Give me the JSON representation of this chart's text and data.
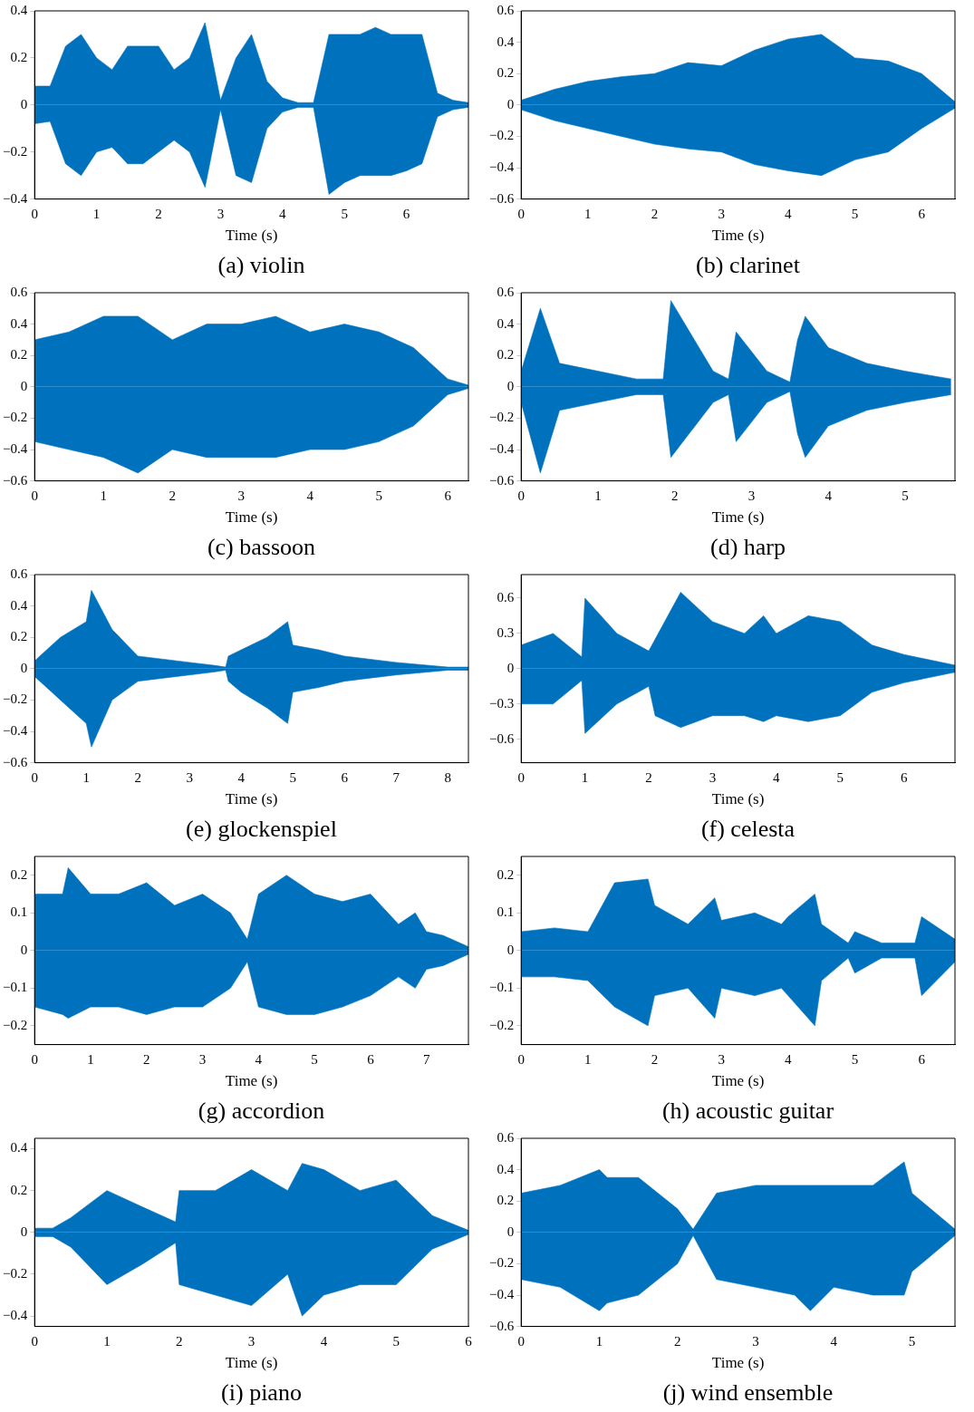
{
  "chart_data": [
    {
      "type": "area",
      "title": "(a) violin",
      "xlabel": "Time (s)",
      "xlim": [
        0,
        7
      ],
      "xticks": [
        0,
        1,
        2,
        3,
        4,
        5,
        6
      ],
      "ylim": [
        -0.4,
        0.4
      ],
      "yticks": [
        -0.4,
        -0.2,
        0,
        0.2,
        0.4
      ],
      "x": [
        0,
        0.25,
        0.5,
        0.75,
        1,
        1.25,
        1.5,
        1.75,
        2,
        2.25,
        2.5,
        2.75,
        3,
        3.25,
        3.5,
        3.75,
        4,
        4.25,
        4.5,
        4.75,
        5,
        5.25,
        5.5,
        5.75,
        6,
        6.25,
        6.5,
        6.75,
        7
      ],
      "series": [
        {
          "color": "#0072bd",
          "values": [
            0.08,
            0.08,
            0.25,
            0.3,
            0.2,
            0.15,
            0.25,
            0.25,
            0.25,
            0.15,
            0.2,
            0.35,
            0.02,
            0.2,
            0.3,
            0.1,
            0.03,
            0.01,
            0.01,
            0.3,
            0.3,
            0.3,
            0.33,
            0.3,
            0.3,
            0.3,
            0.05,
            0.02,
            0.01
          ]
        },
        {
          "color": "#0072bd",
          "values": [
            -0.08,
            -0.07,
            -0.25,
            -0.3,
            -0.2,
            -0.18,
            -0.25,
            -0.25,
            -0.2,
            -0.15,
            -0.2,
            -0.35,
            -0.02,
            -0.3,
            -0.33,
            -0.1,
            -0.03,
            -0.01,
            -0.01,
            -0.38,
            -0.33,
            -0.3,
            -0.3,
            -0.3,
            -0.28,
            -0.25,
            -0.05,
            -0.02,
            -0.01
          ]
        }
      ]
    },
    {
      "type": "area",
      "title": "(b) clarinet",
      "xlabel": "Time (s)",
      "xlim": [
        0,
        6.5
      ],
      "xticks": [
        0,
        1,
        2,
        3,
        4,
        5,
        6
      ],
      "ylim": [
        -0.6,
        0.6
      ],
      "yticks": [
        -0.6,
        -0.4,
        -0.2,
        0,
        0.2,
        0.4,
        0.6
      ],
      "x": [
        0,
        0.5,
        1,
        1.5,
        2,
        2.5,
        3,
        3.5,
        4,
        4.5,
        5,
        5.5,
        6,
        6.5
      ],
      "series": [
        {
          "color": "#0072bd",
          "values": [
            0.03,
            0.1,
            0.15,
            0.18,
            0.2,
            0.27,
            0.25,
            0.35,
            0.42,
            0.45,
            0.3,
            0.28,
            0.2,
            0.02
          ]
        },
        {
          "color": "#0072bd",
          "values": [
            -0.03,
            -0.1,
            -0.15,
            -0.2,
            -0.25,
            -0.28,
            -0.3,
            -0.38,
            -0.42,
            -0.45,
            -0.35,
            -0.3,
            -0.15,
            -0.02
          ]
        }
      ]
    },
    {
      "type": "area",
      "title": "(c) bassoon",
      "xlabel": "Time (s)",
      "xlim": [
        0,
        6.3
      ],
      "xticks": [
        0,
        1,
        2,
        3,
        4,
        5,
        6
      ],
      "ylim": [
        -0.6,
        0.6
      ],
      "yticks": [
        -0.6,
        -0.4,
        -0.2,
        0,
        0.2,
        0.4,
        0.6
      ],
      "x": [
        0,
        0.5,
        1,
        1.5,
        2,
        2.5,
        3,
        3.5,
        4,
        4.5,
        5,
        5.5,
        6,
        6.3
      ],
      "series": [
        {
          "color": "#0072bd",
          "values": [
            0.3,
            0.35,
            0.45,
            0.45,
            0.3,
            0.4,
            0.4,
            0.45,
            0.35,
            0.4,
            0.35,
            0.25,
            0.05,
            0.01
          ]
        },
        {
          "color": "#0072bd",
          "values": [
            -0.35,
            -0.4,
            -0.45,
            -0.55,
            -0.4,
            -0.45,
            -0.45,
            -0.45,
            -0.4,
            -0.4,
            -0.35,
            -0.25,
            -0.05,
            -0.01
          ]
        }
      ]
    },
    {
      "type": "area",
      "title": "(d) harp",
      "xlabel": "Time (s)",
      "xlim": [
        0,
        5.65
      ],
      "xticks": [
        0,
        1,
        2,
        3,
        4,
        5
      ],
      "ylim": [
        -0.6,
        0.6
      ],
      "yticks": [
        -0.6,
        -0.4,
        -0.2,
        0,
        0.2,
        0.4,
        0.6
      ],
      "x": [
        0,
        0.25,
        0.5,
        1,
        1.5,
        1.85,
        1.95,
        2.5,
        2.7,
        2.8,
        3.2,
        3.5,
        3.6,
        3.7,
        4,
        4.5,
        5,
        5.6
      ],
      "series": [
        {
          "color": "#0072bd",
          "values": [
            0.1,
            0.5,
            0.15,
            0.1,
            0.05,
            0.05,
            0.55,
            0.1,
            0.05,
            0.35,
            0.1,
            0.03,
            0.3,
            0.45,
            0.25,
            0.15,
            0.1,
            0.05
          ]
        },
        {
          "color": "#0072bd",
          "values": [
            -0.1,
            -0.55,
            -0.15,
            -0.1,
            -0.05,
            -0.05,
            -0.45,
            -0.1,
            -0.05,
            -0.35,
            -0.1,
            -0.03,
            -0.3,
            -0.45,
            -0.25,
            -0.15,
            -0.1,
            -0.05
          ]
        }
      ]
    },
    {
      "type": "area",
      "title": "(e) glockenspiel",
      "xlabel": "Time (s)",
      "xlim": [
        0,
        8.4
      ],
      "xticks": [
        0,
        1,
        2,
        3,
        4,
        5,
        6,
        7,
        8
      ],
      "ylim": [
        -0.6,
        0.6
      ],
      "yticks": [
        -0.6,
        -0.4,
        -0.2,
        0,
        0.2,
        0.4,
        0.6
      ],
      "x": [
        0,
        0.5,
        1,
        1.1,
        1.5,
        2,
        2.5,
        3,
        3.5,
        3.7,
        3.75,
        4,
        4.5,
        4.9,
        5,
        5.5,
        6,
        7,
        8,
        8.4
      ],
      "series": [
        {
          "color": "#0072bd",
          "values": [
            0.05,
            0.2,
            0.3,
            0.5,
            0.25,
            0.08,
            0.06,
            0.04,
            0.02,
            0.01,
            0.08,
            0.12,
            0.2,
            0.3,
            0.15,
            0.12,
            0.08,
            0.04,
            0.01,
            0.01
          ]
        },
        {
          "color": "#0072bd",
          "values": [
            -0.05,
            -0.2,
            -0.35,
            -0.5,
            -0.2,
            -0.08,
            -0.06,
            -0.04,
            -0.02,
            -0.01,
            -0.08,
            -0.15,
            -0.25,
            -0.35,
            -0.15,
            -0.12,
            -0.08,
            -0.04,
            -0.01,
            -0.01
          ]
        }
      ]
    },
    {
      "type": "area",
      "title": "(f) celesta",
      "xlabel": "Time (s)",
      "xlim": [
        0,
        6.8
      ],
      "xticks": [
        0,
        1,
        2,
        3,
        4,
        5,
        6
      ],
      "ylim": [
        -0.8,
        0.8
      ],
      "yticks": [
        -0.6,
        -0.3,
        0,
        0.3,
        0.6
      ],
      "x": [
        0,
        0.5,
        0.95,
        1,
        1.5,
        2,
        2.1,
        2.5,
        3,
        3.5,
        3.8,
        4,
        4.5,
        5,
        5.5,
        6,
        6.8
      ],
      "series": [
        {
          "color": "#0072bd",
          "values": [
            0.2,
            0.3,
            0.1,
            0.6,
            0.3,
            0.15,
            0.25,
            0.65,
            0.4,
            0.3,
            0.45,
            0.3,
            0.45,
            0.4,
            0.2,
            0.12,
            0.03
          ]
        },
        {
          "color": "#0072bd",
          "values": [
            -0.3,
            -0.3,
            -0.1,
            -0.55,
            -0.3,
            -0.15,
            -0.4,
            -0.5,
            -0.4,
            -0.4,
            -0.45,
            -0.4,
            -0.45,
            -0.4,
            -0.2,
            -0.12,
            -0.03
          ]
        }
      ]
    },
    {
      "type": "area",
      "title": "(g) accordion",
      "xlabel": "Time (s)",
      "xlim": [
        0,
        7.75
      ],
      "xticks": [
        0,
        1,
        2,
        3,
        4,
        5,
        6,
        7
      ],
      "ylim": [
        -0.25,
        0.25
      ],
      "yticks": [
        -0.2,
        -0.1,
        0,
        0.1,
        0.2
      ],
      "x": [
        0,
        0.5,
        0.6,
        1,
        1.5,
        2,
        2.5,
        3,
        3.5,
        3.8,
        4,
        4.5,
        5,
        5.5,
        6,
        6.5,
        6.8,
        7,
        7.3,
        7.75
      ],
      "series": [
        {
          "color": "#0072bd",
          "values": [
            0.15,
            0.15,
            0.22,
            0.15,
            0.15,
            0.18,
            0.12,
            0.15,
            0.1,
            0.03,
            0.15,
            0.2,
            0.15,
            0.13,
            0.15,
            0.07,
            0.1,
            0.05,
            0.04,
            0.01
          ]
        },
        {
          "color": "#0072bd",
          "values": [
            -0.15,
            -0.17,
            -0.18,
            -0.15,
            -0.15,
            -0.17,
            -0.15,
            -0.15,
            -0.1,
            -0.03,
            -0.15,
            -0.17,
            -0.17,
            -0.15,
            -0.12,
            -0.07,
            -0.1,
            -0.05,
            -0.04,
            -0.01
          ]
        }
      ]
    },
    {
      "type": "area",
      "title": "(h) acoustic guitar",
      "xlabel": "Time (s)",
      "xlim": [
        0,
        6.5
      ],
      "xticks": [
        0,
        1,
        2,
        3,
        4,
        5,
        6
      ],
      "ylim": [
        -0.25,
        0.25
      ],
      "yticks": [
        -0.2,
        -0.1,
        0,
        0.1,
        0.2
      ],
      "x": [
        0,
        0.5,
        1,
        1.4,
        1.9,
        2,
        2.5,
        2.9,
        3,
        3.5,
        3.9,
        4,
        4.4,
        4.5,
        4.9,
        5,
        5.4,
        5.9,
        6,
        6.5
      ],
      "series": [
        {
          "color": "#0072bd",
          "values": [
            0.05,
            0.06,
            0.05,
            0.18,
            0.19,
            0.12,
            0.07,
            0.14,
            0.08,
            0.1,
            0.07,
            0.09,
            0.15,
            0.07,
            0.02,
            0.05,
            0.02,
            0.02,
            0.09,
            0.03
          ]
        },
        {
          "color": "#0072bd",
          "values": [
            -0.07,
            -0.07,
            -0.08,
            -0.15,
            -0.2,
            -0.12,
            -0.1,
            -0.18,
            -0.1,
            -0.12,
            -0.1,
            -0.12,
            -0.2,
            -0.08,
            -0.02,
            -0.06,
            -0.02,
            -0.02,
            -0.12,
            -0.03
          ]
        }
      ]
    },
    {
      "type": "area",
      "title": "(i) piano",
      "xlabel": "Time (s)",
      "xlim": [
        0,
        6
      ],
      "xticks": [
        0,
        1,
        2,
        3,
        4,
        5,
        6
      ],
      "ylim": [
        -0.45,
        0.45
      ],
      "yticks": [
        -0.4,
        -0.2,
        0,
        0.2,
        0.4
      ],
      "x": [
        0,
        0.25,
        0.5,
        1,
        1.5,
        1.95,
        2,
        2.5,
        3,
        3.5,
        3.7,
        4,
        4.5,
        5,
        5.5,
        6
      ],
      "series": [
        {
          "color": "#0072bd",
          "values": [
            0.02,
            0.02,
            0.07,
            0.2,
            0.12,
            0.05,
            0.2,
            0.2,
            0.3,
            0.2,
            0.33,
            0.3,
            0.2,
            0.25,
            0.08,
            0.01
          ]
        },
        {
          "color": "#0072bd",
          "values": [
            -0.02,
            -0.02,
            -0.07,
            -0.25,
            -0.15,
            -0.05,
            -0.25,
            -0.3,
            -0.35,
            -0.2,
            -0.4,
            -0.3,
            -0.25,
            -0.25,
            -0.08,
            -0.01
          ]
        }
      ]
    },
    {
      "type": "area",
      "title": "(j) wind ensemble",
      "xlabel": "Time (s)",
      "xlim": [
        0,
        5.55
      ],
      "xticks": [
        0,
        1,
        2,
        3,
        4,
        5
      ],
      "ylim": [
        -0.6,
        0.6
      ],
      "yticks": [
        -0.6,
        -0.4,
        -0.2,
        0,
        0.2,
        0.4,
        0.6
      ],
      "x": [
        0,
        0.5,
        1,
        1.1,
        1.5,
        2,
        2.2,
        2.5,
        3,
        3.5,
        3.7,
        4,
        4.5,
        4.9,
        5,
        5.55
      ],
      "series": [
        {
          "color": "#0072bd",
          "values": [
            0.25,
            0.3,
            0.4,
            0.35,
            0.35,
            0.15,
            0.02,
            0.25,
            0.3,
            0.3,
            0.3,
            0.3,
            0.3,
            0.45,
            0.25,
            0.02
          ]
        },
        {
          "color": "#0072bd",
          "values": [
            -0.3,
            -0.35,
            -0.5,
            -0.45,
            -0.4,
            -0.2,
            -0.02,
            -0.3,
            -0.35,
            -0.4,
            -0.5,
            -0.35,
            -0.4,
            -0.4,
            -0.25,
            -0.02
          ]
        }
      ]
    }
  ]
}
